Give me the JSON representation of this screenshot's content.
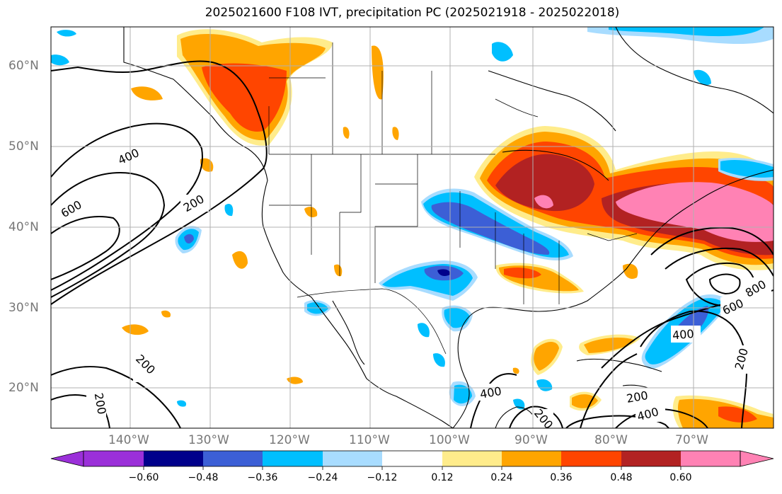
{
  "title": "2025021600 F108 IVT, precipitation PC (2025021918 - 2025022018)",
  "latitude_labels": [
    "60°N",
    "50°N",
    "40°N",
    "30°N",
    "20°N"
  ],
  "longitude_labels": [
    "140°W",
    "130°W",
    "120°W",
    "110°W",
    "100°W",
    "90°W",
    "80°W",
    "70°W"
  ],
  "contour_labels": [
    "400",
    "600",
    "200",
    "200",
    "200",
    "400",
    "600",
    "800",
    "400",
    "200",
    "200",
    "400",
    "200"
  ],
  "colorbar": {
    "ticks": [
      "−0.60",
      "−0.48",
      "−0.36",
      "−0.24",
      "−0.12",
      "0.12",
      "0.24",
      "0.36",
      "0.48",
      "0.60"
    ],
    "colors": [
      "#9b30d9",
      "#00008b",
      "#3c5fd6",
      "#00bfff",
      "#a8dcff",
      "#ffffff",
      "#ffec8b",
      "#ffa500",
      "#ff4500",
      "#b22222",
      "#ff82b4"
    ]
  },
  "field_colors": {
    "light_yellow": "#ffec8b",
    "orange": "#ffa500",
    "red_orange": "#ff4500",
    "dark_red": "#b22222",
    "pink": "#ff82b4",
    "light_blue": "#a8dcff",
    "blue": "#00bfff",
    "royal_blue": "#3c5fd6",
    "navy": "#00008b"
  }
}
